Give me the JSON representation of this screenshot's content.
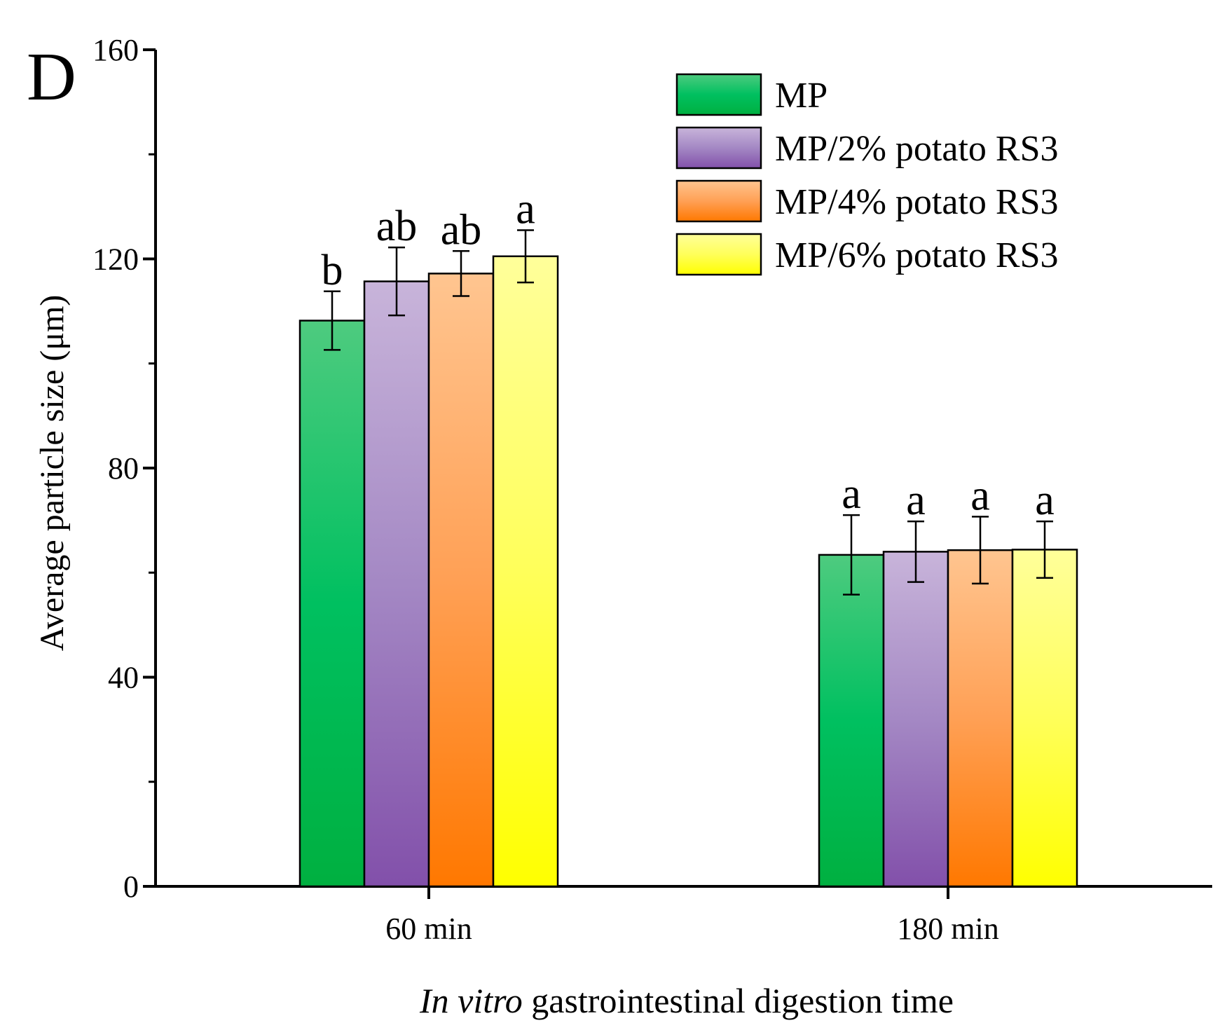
{
  "chart_data": {
    "type": "bar",
    "panel_label": "D",
    "ylabel": "Average particle size (μm)",
    "xlabel_italic": "In vitro",
    "xlabel_rest": " gastrointestinal digestion time",
    "ylim": [
      0,
      160
    ],
    "yticks_major": [
      0,
      40,
      80,
      120,
      160
    ],
    "yticks_minor": [
      20,
      60,
      100,
      140
    ],
    "categories": [
      "60 min",
      "180 min"
    ],
    "legend_position": "top-right",
    "series": [
      {
        "name": "MP",
        "values": [
          108.2,
          63.4
        ],
        "errors": [
          5.6,
          7.6
        ],
        "letters": [
          "b",
          "a"
        ],
        "color_top": "#4ecb7f",
        "color_mid": "#00c060",
        "color_bottom": "#00b040"
      },
      {
        "name": "MP/2% potato RS3",
        "values": [
          115.7,
          64.0
        ],
        "errors": [
          6.5,
          5.8
        ],
        "letters": [
          "ab",
          "a"
        ],
        "color_top": "#c8b4da",
        "color_mid": "#a488c4",
        "color_bottom": "#8250aa"
      },
      {
        "name": "MP/4% potato RS3",
        "values": [
          117.2,
          64.3
        ],
        "errors": [
          4.3,
          6.4
        ],
        "letters": [
          "ab",
          "a"
        ],
        "color_top": "#ffc590",
        "color_mid": "#ffa055",
        "color_bottom": "#ff7800"
      },
      {
        "name": "MP/6% potato RS3",
        "values": [
          120.5,
          64.4
        ],
        "errors": [
          5.0,
          5.4
        ],
        "letters": [
          "a",
          "a"
        ],
        "color_top": "#ffff9a",
        "color_mid": "#ffff5a",
        "color_bottom": "#ffff00"
      }
    ]
  }
}
